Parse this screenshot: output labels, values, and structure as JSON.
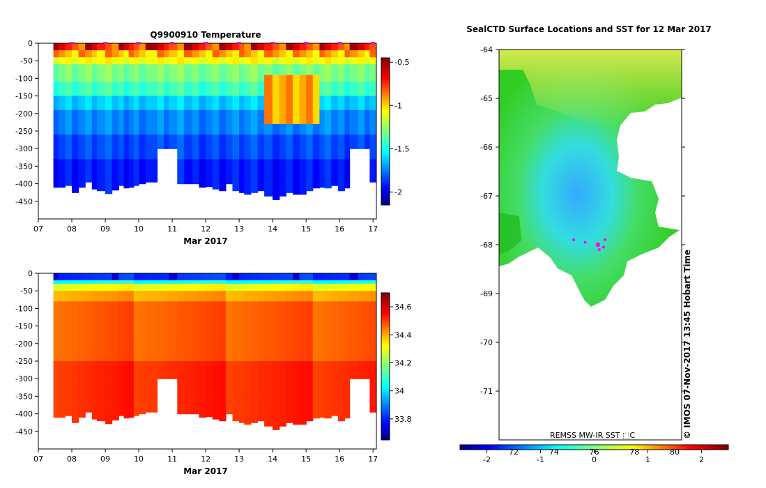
{
  "chart_data": [
    {
      "type": "heatmap",
      "title": "Q9900910  Temperature",
      "xlabel": "Mar 2017",
      "x_ticks": [
        "07",
        "08",
        "09",
        "10",
        "11",
        "12",
        "13",
        "14",
        "15",
        "16",
        "17"
      ],
      "y_ticks": [
        0,
        -50,
        -100,
        -150,
        -200,
        -250,
        -300,
        -350,
        -400,
        -450
      ],
      "xlim": [
        7,
        17.1
      ],
      "ylim": [
        -500,
        0
      ],
      "colorbar": {
        "ticks": [
          -0.5,
          -1,
          -1.5,
          -2
        ],
        "range": [
          -2.15,
          -0.45
        ]
      },
      "profile_times": [
        8,
        9,
        10,
        11,
        12,
        13,
        14,
        15,
        16,
        17
      ],
      "profiles": [
        [
          7.45,
          -410
        ],
        [
          7.6,
          -410
        ],
        [
          7.8,
          -405
        ],
        [
          8.0,
          -425
        ],
        [
          8.2,
          -410
        ],
        [
          8.4,
          -395
        ],
        [
          8.6,
          -415
        ],
        [
          8.75,
          -420
        ],
        [
          9.0,
          -428
        ],
        [
          9.2,
          -418
        ],
        [
          9.4,
          -405
        ],
        [
          9.55,
          -412
        ],
        [
          9.7,
          -410
        ],
        [
          9.85,
          -405
        ],
        [
          10.0,
          -400
        ],
        [
          10.2,
          -395
        ],
        [
          10.55,
          -300
        ],
        [
          10.75,
          -300
        ],
        [
          10.9,
          -300
        ],
        [
          11.15,
          -400
        ],
        [
          11.35,
          -400
        ],
        [
          11.6,
          -400
        ],
        [
          11.8,
          -410
        ],
        [
          12.0,
          -408
        ],
        [
          12.2,
          -415
        ],
        [
          12.4,
          -420
        ],
        [
          12.6,
          -400
        ],
        [
          12.8,
          -420
        ],
        [
          13.0,
          -425
        ],
        [
          13.15,
          -430
        ],
        [
          13.35,
          -425
        ],
        [
          13.55,
          -420
        ],
        [
          13.75,
          -435
        ],
        [
          14.0,
          -445
        ],
        [
          14.2,
          -435
        ],
        [
          14.4,
          -425
        ],
        [
          14.6,
          -430
        ],
        [
          14.8,
          -430
        ],
        [
          15.0,
          -420
        ],
        [
          15.2,
          -412
        ],
        [
          15.4,
          -410
        ],
        [
          15.55,
          -412
        ],
        [
          15.75,
          -405
        ],
        [
          15.95,
          -420
        ],
        [
          16.15,
          -412
        ],
        [
          16.3,
          -300
        ],
        [
          16.55,
          -300
        ],
        [
          16.75,
          -300
        ],
        [
          16.9,
          -395
        ]
      ]
    },
    {
      "type": "heatmap",
      "xlabel": "Mar 2017",
      "x_ticks": [
        "07",
        "08",
        "09",
        "10",
        "11",
        "12",
        "13",
        "14",
        "15",
        "16",
        "17"
      ],
      "y_ticks": [
        0,
        -50,
        -100,
        -150,
        -200,
        -250,
        -300,
        -350,
        -400,
        -450
      ],
      "xlim": [
        7,
        17.1
      ],
      "ylim": [
        -500,
        0
      ],
      "colorbar": {
        "ticks": [
          34.6,
          34.4,
          34.2,
          34,
          33.8
        ],
        "range": [
          33.65,
          34.7
        ]
      }
    },
    {
      "type": "heatmap",
      "title": "SealCTD Surface Locations and SST for 12 Mar 2017",
      "y_ticks": [
        -64,
        -65,
        -66,
        -67,
        -68,
        -69,
        -70,
        -71
      ],
      "ylim": [
        -72,
        -64
      ],
      "colorbar": {
        "ticks_lower": [
          -2,
          -1,
          0,
          1,
          2
        ],
        "ticks_upper": [
          72,
          74,
          76,
          78,
          80
        ],
        "range": [
          -2.5,
          2.5
        ]
      },
      "source_label": "REMSS MW-IR SST ⬚C",
      "credit": "© IMOS 07-Nov-2017 13:45 Hobart Time",
      "seal_locations": [
        [
          -67.9,
          74.8
        ],
        [
          -67.95,
          75.6
        ],
        [
          -68.0,
          76.5
        ],
        [
          -68.05,
          76.9
        ],
        [
          -68.1,
          76.6
        ],
        [
          -67.9,
          77.0
        ]
      ]
    }
  ],
  "colors": {
    "jet": [
      "#00007f",
      "#0000ff",
      "#007fff",
      "#00ffff",
      "#7fff7f",
      "#ffff00",
      "#ff7f00",
      "#ff0000",
      "#7f0000"
    ],
    "marker": "#ff00ff"
  }
}
